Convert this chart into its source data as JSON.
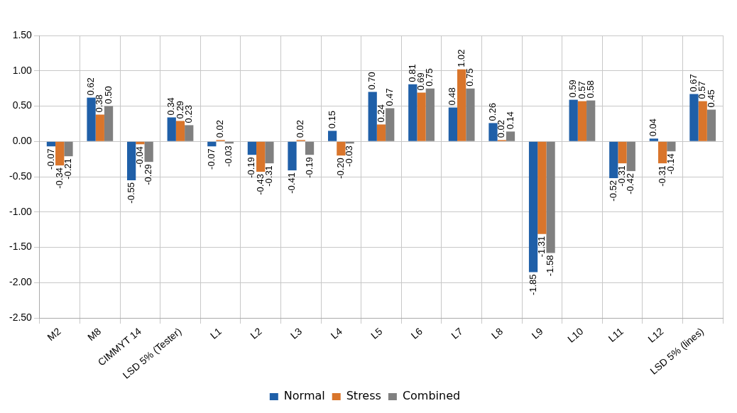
{
  "chart_data": {
    "type": "bar",
    "categories": [
      "M2",
      "M8",
      "CIMMYT 14",
      "LSD 5% (Tester)",
      "L1",
      "L2",
      "L3",
      "L4",
      "L5",
      "L6",
      "L7",
      "L8",
      "L9",
      "L10",
      "L11",
      "L12",
      "LSD 5% (lines)"
    ],
    "series": [
      {
        "name": "Normal",
        "color": "#1f5fa8",
        "values": [
          -0.07,
          0.62,
          -0.55,
          0.34,
          -0.07,
          -0.19,
          -0.41,
          0.15,
          0.7,
          0.81,
          0.48,
          0.26,
          -1.85,
          0.59,
          -0.52,
          0.04,
          0.67
        ],
        "value_labels": [
          "-0.07",
          "0.62",
          "-0.55",
          "0.34",
          "-0.07",
          "-0.19",
          "-0.41",
          "0.15",
          "0.70",
          "0.81",
          "0.48",
          "0.26",
          "-1.85",
          "0.59",
          "-0.52",
          "0.04",
          "0.67"
        ]
      },
      {
        "name": "Stress",
        "color": "#d9752b",
        "values": [
          -0.34,
          0.38,
          -0.04,
          0.29,
          0.02,
          -0.43,
          0.02,
          -0.2,
          0.24,
          0.69,
          1.02,
          0.02,
          -1.31,
          0.57,
          -0.31,
          -0.31,
          0.57
        ],
        "value_labels": [
          "-0.34",
          "0.38",
          "-0.04",
          "0.29",
          "0.02",
          "-0.43",
          "0.02",
          "-0.20",
          "0.24",
          "0.69",
          "1.02",
          "0.02",
          "-1.31",
          "0.57",
          "-0.31",
          "-0.31",
          "0.57"
        ]
      },
      {
        "name": "Combined",
        "color": "#808080",
        "values": [
          -0.21,
          0.5,
          -0.29,
          0.23,
          -0.03,
          -0.31,
          -0.19,
          -0.03,
          0.47,
          0.75,
          0.75,
          0.14,
          -1.58,
          0.58,
          -0.42,
          -0.14,
          0.45
        ],
        "value_labels": [
          "-0.21",
          "0.50",
          "-0.29",
          "0.23",
          "-0.03",
          "-0.31",
          "-0.19",
          "-0.03",
          "0.47",
          "0.75",
          "0.75",
          "0.14",
          "-1.58",
          "0.58",
          "-0.42",
          "-0.14",
          "0.45"
        ]
      }
    ],
    "ylim": [
      -2.5,
      1.5
    ],
    "yticks": [
      {
        "value": -2.5,
        "label": "-2.50"
      },
      {
        "value": -2,
        "label": "-2.00"
      },
      {
        "value": -1.5,
        "label": "-1.50"
      },
      {
        "value": -1,
        "label": "-1.00"
      },
      {
        "value": -0.5,
        "label": "-0.50"
      },
      {
        "value": 0,
        "label": "0.00"
      },
      {
        "value": 0.5,
        "label": "0.50"
      },
      {
        "value": 1,
        "label": "1.00"
      },
      {
        "value": 1.5,
        "label": "1.50"
      }
    ],
    "grid": true,
    "legend": "bottom"
  }
}
